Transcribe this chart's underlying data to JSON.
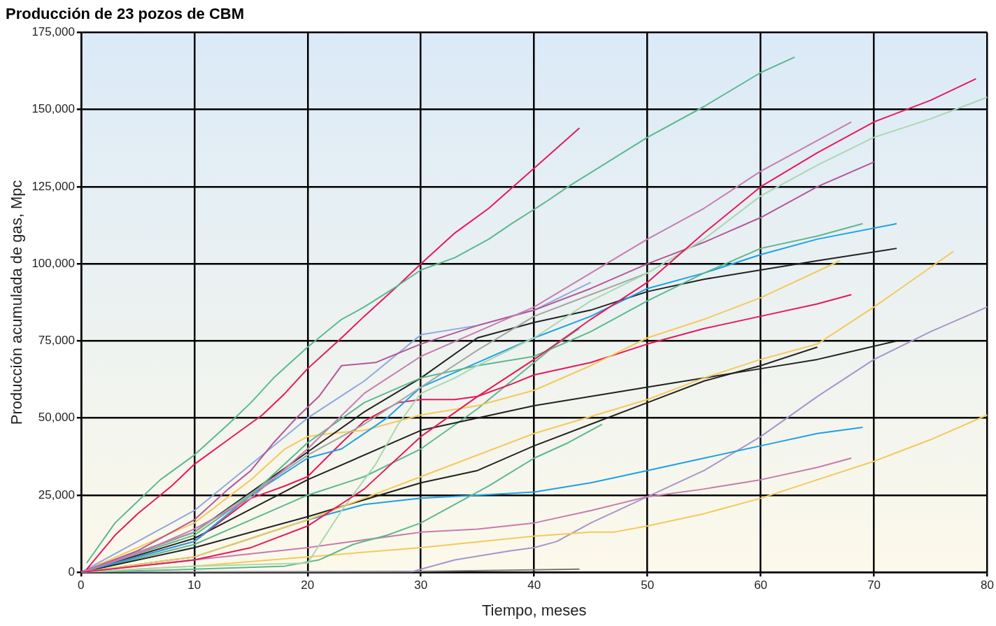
{
  "chart_data": {
    "type": "line",
    "title": "Producción de 23 pozos de CBM",
    "xlabel": "Tiempo, meses",
    "ylabel": "Producción acumulada de gas, Mpc",
    "xlim": [
      0,
      80
    ],
    "xticks": [
      0,
      10,
      20,
      30,
      40,
      50,
      60,
      70,
      80
    ],
    "ylim": [
      0,
      175000
    ],
    "yticks": [
      {
        "value": 0,
        "label": "0"
      },
      {
        "value": 25000,
        "label": "25,000"
      },
      {
        "value": 50000,
        "label": "50,000"
      },
      {
        "value": 75000,
        "label": "75,000"
      },
      {
        "value": 100000,
        "label": "100,000"
      },
      {
        "value": 125000,
        "label": "125,000"
      },
      {
        "value": 150000,
        "label": "150,000"
      },
      {
        "value": 175000,
        "label": "175,000"
      }
    ],
    "grid": true,
    "legend": false,
    "marker": "none",
    "line_style": "solid",
    "series": [
      {
        "color": "#5cb88f",
        "x": [
          0.5,
          3,
          5,
          7,
          10,
          13,
          15,
          17,
          20,
          23,
          25,
          28,
          30,
          33,
          36,
          38,
          41,
          43,
          50,
          55,
          60,
          63
        ],
        "values": [
          3000,
          16000,
          23000,
          30000,
          38000,
          48000,
          55000,
          63000,
          73000,
          82000,
          86000,
          93000,
          98000,
          102000,
          108000,
          113000,
          120000,
          125000,
          141000,
          151000,
          162000,
          167000
        ]
      },
      {
        "color": "#e8175d",
        "x": [
          0.5,
          3,
          5,
          8,
          10,
          13,
          16,
          18,
          20,
          23,
          25,
          28,
          30,
          33,
          36,
          40,
          44
        ],
        "values": [
          1000,
          12000,
          19000,
          28000,
          35000,
          43000,
          51000,
          58000,
          66000,
          76000,
          83000,
          93000,
          100000,
          110000,
          118000,
          131000,
          144000
        ]
      },
      {
        "color": "#e8175d",
        "x": [
          0,
          5,
          10,
          15,
          20,
          25,
          30,
          35,
          40,
          45,
          50,
          55,
          60,
          65,
          70,
          75,
          79
        ],
        "values": [
          0,
          2000,
          4000,
          8000,
          15000,
          27000,
          44000,
          57000,
          69000,
          82000,
          94000,
          110000,
          125000,
          136000,
          146000,
          153000,
          160000
        ]
      },
      {
        "color": "#a8d8b0",
        "x": [
          0,
          10,
          20,
          23,
          26,
          28,
          30,
          33,
          35,
          40,
          45,
          50,
          55,
          60,
          65,
          70,
          75,
          80
        ],
        "values": [
          0,
          2000,
          3000,
          20000,
          35000,
          48000,
          58000,
          63000,
          67000,
          76000,
          88000,
          97000,
          108000,
          122000,
          132000,
          141000,
          147000,
          154000
        ]
      },
      {
        "color": "#c77bb0",
        "x": [
          0,
          5,
          10,
          15,
          20,
          25,
          30,
          35,
          40,
          45,
          50,
          55,
          60,
          65,
          68
        ],
        "values": [
          0,
          6000,
          14000,
          24000,
          40000,
          58000,
          70000,
          78000,
          86000,
          97000,
          108000,
          118000,
          130000,
          140000,
          146000
        ]
      },
      {
        "color": "#b5559a",
        "x": [
          0,
          5,
          10,
          13,
          15,
          17,
          19,
          21,
          23,
          26,
          30,
          35,
          40,
          45,
          50,
          55,
          60,
          65,
          70
        ],
        "values": [
          0,
          7000,
          17000,
          27000,
          33000,
          42000,
          50000,
          57000,
          67000,
          68000,
          74000,
          80000,
          85000,
          92000,
          100000,
          107000,
          115000,
          125000,
          133000
        ]
      },
      {
        "color": "#8fa8e0",
        "x": [
          0,
          10,
          20,
          25,
          30,
          35,
          40,
          45
        ],
        "values": [
          0,
          20000,
          50000,
          62000,
          77000,
          80000,
          85000,
          94000
        ]
      },
      {
        "color": "#a0a8a0",
        "x": [
          0,
          10,
          20,
          25,
          30,
          35,
          40,
          45,
          50
        ],
        "values": [
          0,
          13000,
          38000,
          48000,
          60000,
          72000,
          83000,
          90000,
          97000
        ]
      },
      {
        "color": "#5cb88f",
        "x": [
          0,
          10,
          15,
          20,
          25,
          30,
          35,
          40,
          45,
          50,
          55,
          60,
          65,
          69
        ],
        "values": [
          0,
          12000,
          25000,
          42000,
          55000,
          63000,
          67000,
          70000,
          78000,
          88000,
          97000,
          105000,
          109000,
          113000
        ]
      },
      {
        "color": "#1ea0e6",
        "x": [
          0,
          10,
          15,
          20,
          23,
          27,
          30,
          35,
          40,
          45,
          50,
          55,
          60,
          65,
          72
        ],
        "values": [
          0,
          10000,
          25000,
          37000,
          40000,
          50000,
          60000,
          68000,
          76000,
          83000,
          92000,
          97000,
          103000,
          108000,
          113000
        ]
      },
      {
        "color": "#222222",
        "x": [
          0,
          10,
          20,
          25,
          30,
          35,
          40,
          45,
          50,
          55,
          60,
          65,
          72
        ],
        "values": [
          0,
          13000,
          39000,
          52000,
          63000,
          76000,
          81000,
          85000,
          91000,
          95000,
          98000,
          101000,
          105000
        ]
      },
      {
        "color": "#f5c95a",
        "x": [
          0,
          10,
          15,
          18,
          20,
          22,
          25,
          30,
          35,
          40,
          45,
          50,
          55,
          60,
          67
        ],
        "values": [
          0,
          16000,
          30000,
          40000,
          44000,
          45000,
          46000,
          51000,
          54000,
          59000,
          67000,
          76000,
          82000,
          89000,
          101000
        ]
      },
      {
        "color": "#f5c95a",
        "x": [
          0,
          10,
          20,
          30,
          40,
          50,
          55,
          60,
          65,
          70,
          77
        ],
        "values": [
          0,
          5000,
          17000,
          31000,
          45000,
          56000,
          63000,
          69000,
          74000,
          86000,
          104000
        ]
      },
      {
        "color": "#e8175d",
        "x": [
          0,
          5,
          10,
          15,
          18,
          20,
          23,
          25,
          28,
          30,
          33,
          35,
          38,
          40,
          45,
          50,
          55,
          60,
          65,
          68
        ],
        "values": [
          0,
          5000,
          10000,
          24000,
          28000,
          31000,
          42000,
          49000,
          55000,
          56000,
          56000,
          57000,
          61000,
          64000,
          68000,
          74000,
          79000,
          83000,
          87000,
          90000
        ]
      },
      {
        "color": "#222222",
        "x": [
          0,
          10,
          20,
          30,
          40,
          50,
          60,
          65,
          72
        ],
        "values": [
          0,
          11000,
          30000,
          46000,
          54000,
          60000,
          66000,
          69000,
          75000
        ]
      },
      {
        "color": "#222222",
        "x": [
          0,
          10,
          20,
          30,
          35,
          40,
          45,
          50,
          55,
          60,
          65
        ],
        "values": [
          0,
          8000,
          18000,
          29000,
          33000,
          41000,
          48000,
          55000,
          62000,
          67000,
          73000
        ]
      },
      {
        "color": "#5cb88f",
        "x": [
          0,
          10,
          20,
          25,
          30,
          35,
          40,
          42,
          44
        ],
        "values": [
          0,
          9000,
          25000,
          31000,
          40000,
          53000,
          68000,
          74000,
          79000
        ]
      },
      {
        "color": "#5cb88f",
        "x": [
          0,
          10,
          18,
          21,
          24,
          27,
          30,
          33,
          36,
          40,
          43,
          46
        ],
        "values": [
          0,
          1000,
          2000,
          4000,
          9000,
          12000,
          16000,
          22000,
          28000,
          37000,
          42000,
          48000
        ]
      },
      {
        "color": "#1ea0e6",
        "x": [
          0,
          10,
          15,
          20,
          25,
          30,
          35,
          40,
          45,
          50,
          55,
          60,
          65,
          69
        ],
        "values": [
          0,
          5000,
          11000,
          17000,
          22000,
          24000,
          25000,
          26000,
          29000,
          33000,
          37000,
          41000,
          45000,
          47000
        ]
      },
      {
        "color": "#c77bb0",
        "x": [
          0,
          10,
          20,
          30,
          35,
          40,
          45,
          50,
          55,
          60,
          65,
          68
        ],
        "values": [
          0,
          4000,
          8000,
          13000,
          14000,
          16000,
          20000,
          24500,
          27000,
          30000,
          34000,
          37000
        ]
      },
      {
        "color": "#f5c95a",
        "x": [
          0,
          10,
          20,
          30,
          40,
          45,
          47,
          50,
          55,
          60,
          65,
          70,
          75,
          80
        ],
        "values": [
          0,
          2000,
          5000,
          8000,
          11700,
          13000,
          13000,
          15000,
          19000,
          24000,
          30000,
          36000,
          43000,
          51000
        ]
      },
      {
        "color": "#a894cc",
        "x": [
          0,
          29,
          33,
          38,
          40,
          42,
          45,
          50,
          55,
          60,
          65,
          70,
          75,
          80
        ],
        "values": [
          0,
          0,
          4000,
          7000,
          8000,
          10000,
          16000,
          24500,
          33000,
          44000,
          57000,
          69000,
          78000,
          86000
        ]
      },
      {
        "color": "#777777",
        "x": [
          0,
          30,
          44
        ],
        "values": [
          0,
          300,
          1000
        ]
      }
    ]
  }
}
